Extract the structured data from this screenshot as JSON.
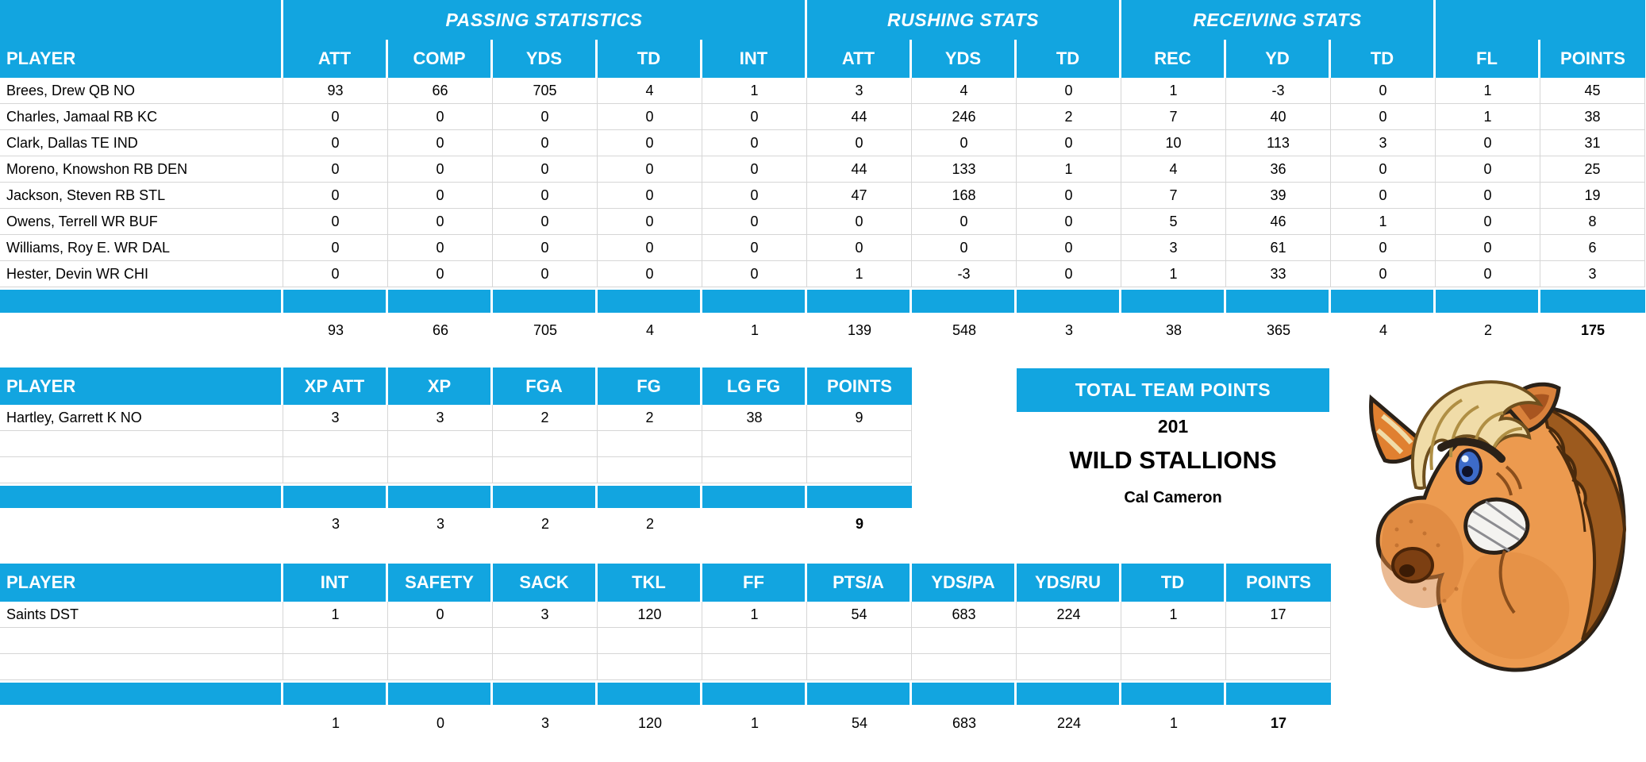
{
  "colors": {
    "header_blue": "#12A5E0",
    "grid_line": "#D6D6D6",
    "text": "#000000",
    "mascot_coat": "#EC9A4F",
    "mascot_mane": "#F0DCA8"
  },
  "offense_table": {
    "group_headers": [
      {
        "label": "",
        "span": 1
      },
      {
        "label": "PASSING STATISTICS",
        "span": 5
      },
      {
        "label": "RUSHING STATS",
        "span": 3
      },
      {
        "label": "RECEIVING STATS",
        "span": 3
      },
      {
        "label": "",
        "span": 2
      }
    ],
    "columns": [
      "PLAYER",
      "ATT",
      "COMP",
      "YDS",
      "TD",
      "INT",
      "ATT",
      "YDS",
      "TD",
      "REC",
      "YD",
      "TD",
      "FL",
      "POINTS"
    ],
    "rows": [
      {
        "player": "Brees, Drew QB NO",
        "values": [
          "93",
          "66",
          "705",
          "4",
          "1",
          "3",
          "4",
          "0",
          "1",
          "-3",
          "0",
          "1",
          "45"
        ]
      },
      {
        "player": "Charles, Jamaal RB KC",
        "values": [
          "0",
          "0",
          "0",
          "0",
          "0",
          "44",
          "246",
          "2",
          "7",
          "40",
          "0",
          "1",
          "38"
        ]
      },
      {
        "player": "Clark, Dallas TE IND",
        "values": [
          "0",
          "0",
          "0",
          "0",
          "0",
          "0",
          "0",
          "0",
          "10",
          "113",
          "3",
          "0",
          "31"
        ]
      },
      {
        "player": "Moreno, Knowshon RB DEN",
        "values": [
          "0",
          "0",
          "0",
          "0",
          "0",
          "44",
          "133",
          "1",
          "4",
          "36",
          "0",
          "0",
          "25"
        ]
      },
      {
        "player": "Jackson, Steven RB STL",
        "values": [
          "0",
          "0",
          "0",
          "0",
          "0",
          "47",
          "168",
          "0",
          "7",
          "39",
          "0",
          "0",
          "19"
        ]
      },
      {
        "player": "Owens, Terrell WR BUF",
        "values": [
          "0",
          "0",
          "0",
          "0",
          "0",
          "0",
          "0",
          "0",
          "5",
          "46",
          "1",
          "0",
          "8"
        ]
      },
      {
        "player": "Williams, Roy E. WR DAL",
        "values": [
          "0",
          "0",
          "0",
          "0",
          "0",
          "0",
          "0",
          "0",
          "3",
          "61",
          "0",
          "0",
          "6"
        ]
      },
      {
        "player": "Hester, Devin WR CHI",
        "values": [
          "0",
          "0",
          "0",
          "0",
          "0",
          "1",
          "-3",
          "0",
          "1",
          "33",
          "0",
          "0",
          "3"
        ]
      }
    ],
    "empty_row_count": 0,
    "totals": [
      "93",
      "66",
      "705",
      "4",
      "1",
      "139",
      "548",
      "3",
      "38",
      "365",
      "4",
      "2",
      "175"
    ]
  },
  "kicker_table": {
    "columns": [
      "PLAYER",
      "XP ATT",
      "XP",
      "FGA",
      "FG",
      "LG FG",
      "POINTS"
    ],
    "rows": [
      {
        "player": "Hartley, Garrett K NO",
        "values": [
          "3",
          "3",
          "2",
          "2",
          "38",
          "9"
        ]
      }
    ],
    "empty_row_count": 2,
    "totals": [
      "3",
      "3",
      "2",
      "2",
      "",
      "9"
    ]
  },
  "team_summary": {
    "title": "TOTAL TEAM POINTS",
    "total_points": "201",
    "team_name": "WILD STALLIONS",
    "owner": "Cal Cameron"
  },
  "defense_table": {
    "columns": [
      "PLAYER",
      "INT",
      "SAFETY",
      "SACK",
      "TKL",
      "FF",
      "PTS/A",
      "YDS/PA",
      "YDS/RU",
      "TD",
      "POINTS"
    ],
    "rows": [
      {
        "player": "Saints DST",
        "values": [
          "1",
          "0",
          "3",
          "120",
          "1",
          "54",
          "683",
          "224",
          "1",
          "17"
        ]
      }
    ],
    "empty_row_count": 2,
    "totals": [
      "1",
      "0",
      "3",
      "120",
      "1",
      "54",
      "683",
      "224",
      "1",
      "17"
    ]
  },
  "mascot": {
    "icon": "angry-horse-head-clipart"
  }
}
